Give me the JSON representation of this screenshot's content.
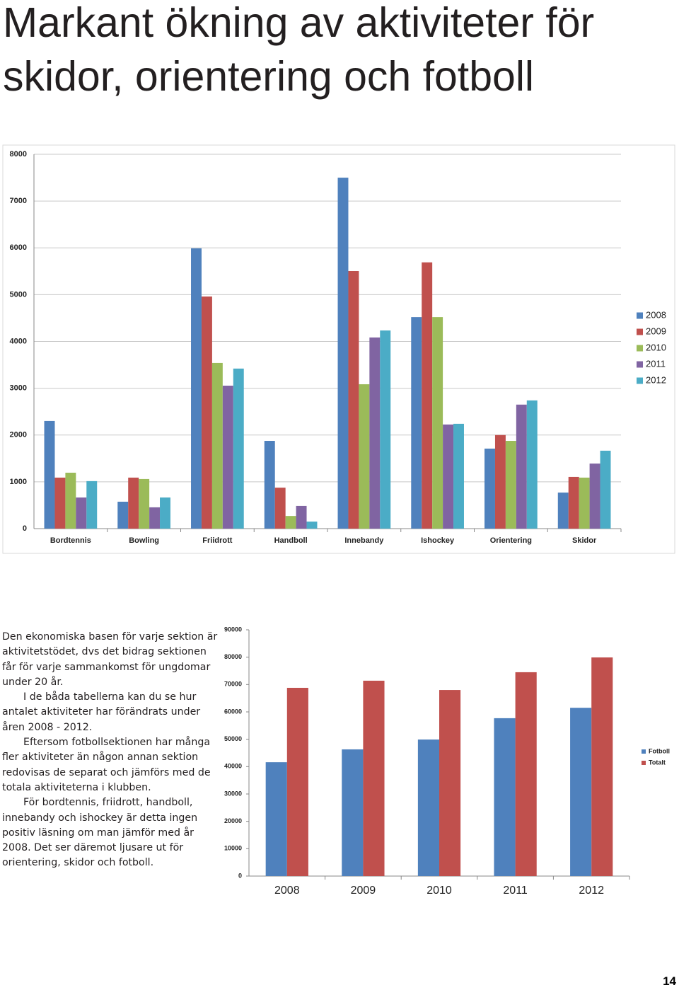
{
  "header": {
    "title": "Markant ökning av aktiviteter för skidor, orientering och fotboll"
  },
  "chart_data": [
    {
      "type": "bar",
      "categories": [
        "Bordtennis",
        "Bowling",
        "Friidrott",
        "Handboll",
        "Innebandy",
        "Ishockey",
        "Orientering",
        "Skidor"
      ],
      "series": [
        {
          "name": "2008",
          "color": "#4f81bd",
          "values": [
            2300,
            575,
            5990,
            1875,
            7500,
            4520,
            1710,
            770
          ]
        },
        {
          "name": "2009",
          "color": "#c0504d",
          "values": [
            1090,
            1090,
            4960,
            875,
            5505,
            5690,
            2000,
            1105
          ]
        },
        {
          "name": "2010",
          "color": "#9bbb59",
          "values": [
            1195,
            1060,
            3540,
            270,
            3085,
            4520,
            1875,
            1090
          ]
        },
        {
          "name": "2011",
          "color": "#8064a2",
          "values": [
            665,
            455,
            3055,
            485,
            4085,
            2225,
            2650,
            1390
          ]
        },
        {
          "name": "2012",
          "color": "#4bacc6",
          "values": [
            1015,
            665,
            3420,
            150,
            4235,
            2240,
            2740,
            1665
          ]
        }
      ],
      "ylim": [
        0,
        8000
      ],
      "yticks": [
        0,
        1000,
        2000,
        3000,
        4000,
        5000,
        6000,
        7000,
        8000
      ],
      "grid": true,
      "legend": "right"
    },
    {
      "type": "bar",
      "categories": [
        "2008",
        "2009",
        "2010",
        "2011",
        "2012"
      ],
      "series": [
        {
          "name": "Fotboll",
          "color": "#4f81bd",
          "values": [
            41600,
            46300,
            49900,
            57700,
            61500
          ]
        },
        {
          "name": "Totalt",
          "color": "#c0504d",
          "values": [
            68800,
            71400,
            68000,
            74500,
            79900
          ]
        }
      ],
      "ylim": [
        0,
        90000
      ],
      "yticks": [
        0,
        10000,
        20000,
        30000,
        40000,
        50000,
        60000,
        70000,
        80000,
        90000
      ],
      "grid": false,
      "legend": "right"
    }
  ],
  "body": {
    "paragraphs": [
      "Den ekonomiska basen för varje sektion är aktivitetstödet, dvs det bidrag sektionen får för varje sammankomst för ungdomar under 20 år.",
      "I de båda tabellerna kan du se hur antalet aktiviteter har förändrats under åren 2008 - 2012.",
      "Eftersom fotbollsektionen har många fler aktiviteter än någon annan sektion redovisas de separat och jämförs med de totala aktiviteterna i klubben.",
      "För bordtennis, friidrott, handboll, innebandy och ishockey är detta ingen positiv läsning om man jämför med år 2008. Det ser däremot ljusare ut för orientering, skidor och fotboll."
    ]
  },
  "page_number": "14"
}
